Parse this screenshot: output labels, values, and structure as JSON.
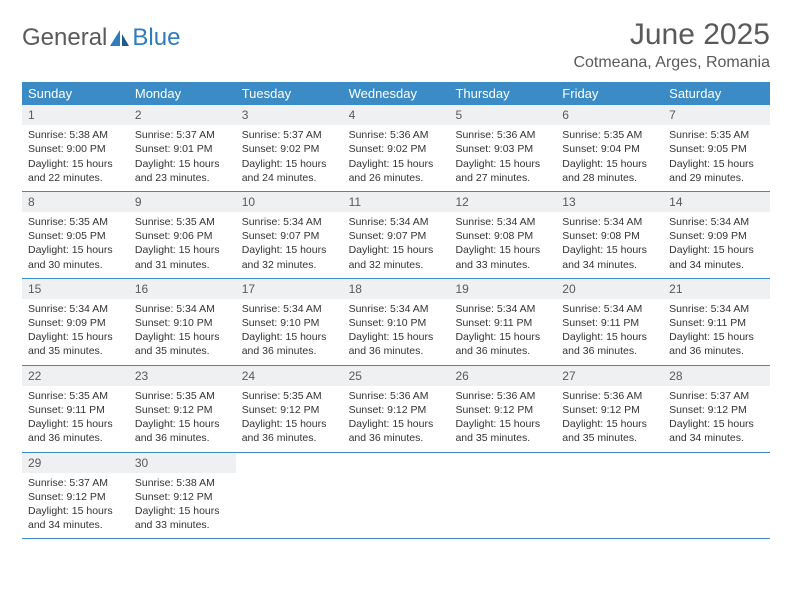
{
  "brand": {
    "part1": "General",
    "part2": "Blue"
  },
  "title": "June 2025",
  "location": "Cotmeana, Arges, Romania",
  "day_labels": [
    "Sunday",
    "Monday",
    "Tuesday",
    "Wednesday",
    "Thursday",
    "Friday",
    "Saturday"
  ],
  "colors": {
    "header_bg": "#3b8bc6",
    "header_text": "#ffffff",
    "daynum_bg": "#eef0f1",
    "border": "#3b8bc6",
    "text": "#333333",
    "title": "#5a5a5a"
  },
  "weeks": [
    [
      {
        "day": "1",
        "sunrise": "Sunrise: 5:38 AM",
        "sunset": "Sunset: 9:00 PM",
        "daylight": "Daylight: 15 hours and 22 minutes."
      },
      {
        "day": "2",
        "sunrise": "Sunrise: 5:37 AM",
        "sunset": "Sunset: 9:01 PM",
        "daylight": "Daylight: 15 hours and 23 minutes."
      },
      {
        "day": "3",
        "sunrise": "Sunrise: 5:37 AM",
        "sunset": "Sunset: 9:02 PM",
        "daylight": "Daylight: 15 hours and 24 minutes."
      },
      {
        "day": "4",
        "sunrise": "Sunrise: 5:36 AM",
        "sunset": "Sunset: 9:02 PM",
        "daylight": "Daylight: 15 hours and 26 minutes."
      },
      {
        "day": "5",
        "sunrise": "Sunrise: 5:36 AM",
        "sunset": "Sunset: 9:03 PM",
        "daylight": "Daylight: 15 hours and 27 minutes."
      },
      {
        "day": "6",
        "sunrise": "Sunrise: 5:35 AM",
        "sunset": "Sunset: 9:04 PM",
        "daylight": "Daylight: 15 hours and 28 minutes."
      },
      {
        "day": "7",
        "sunrise": "Sunrise: 5:35 AM",
        "sunset": "Sunset: 9:05 PM",
        "daylight": "Daylight: 15 hours and 29 minutes."
      }
    ],
    [
      {
        "day": "8",
        "sunrise": "Sunrise: 5:35 AM",
        "sunset": "Sunset: 9:05 PM",
        "daylight": "Daylight: 15 hours and 30 minutes."
      },
      {
        "day": "9",
        "sunrise": "Sunrise: 5:35 AM",
        "sunset": "Sunset: 9:06 PM",
        "daylight": "Daylight: 15 hours and 31 minutes."
      },
      {
        "day": "10",
        "sunrise": "Sunrise: 5:34 AM",
        "sunset": "Sunset: 9:07 PM",
        "daylight": "Daylight: 15 hours and 32 minutes."
      },
      {
        "day": "11",
        "sunrise": "Sunrise: 5:34 AM",
        "sunset": "Sunset: 9:07 PM",
        "daylight": "Daylight: 15 hours and 32 minutes."
      },
      {
        "day": "12",
        "sunrise": "Sunrise: 5:34 AM",
        "sunset": "Sunset: 9:08 PM",
        "daylight": "Daylight: 15 hours and 33 minutes."
      },
      {
        "day": "13",
        "sunrise": "Sunrise: 5:34 AM",
        "sunset": "Sunset: 9:08 PM",
        "daylight": "Daylight: 15 hours and 34 minutes."
      },
      {
        "day": "14",
        "sunrise": "Sunrise: 5:34 AM",
        "sunset": "Sunset: 9:09 PM",
        "daylight": "Daylight: 15 hours and 34 minutes."
      }
    ],
    [
      {
        "day": "15",
        "sunrise": "Sunrise: 5:34 AM",
        "sunset": "Sunset: 9:09 PM",
        "daylight": "Daylight: 15 hours and 35 minutes."
      },
      {
        "day": "16",
        "sunrise": "Sunrise: 5:34 AM",
        "sunset": "Sunset: 9:10 PM",
        "daylight": "Daylight: 15 hours and 35 minutes."
      },
      {
        "day": "17",
        "sunrise": "Sunrise: 5:34 AM",
        "sunset": "Sunset: 9:10 PM",
        "daylight": "Daylight: 15 hours and 36 minutes."
      },
      {
        "day": "18",
        "sunrise": "Sunrise: 5:34 AM",
        "sunset": "Sunset: 9:10 PM",
        "daylight": "Daylight: 15 hours and 36 minutes."
      },
      {
        "day": "19",
        "sunrise": "Sunrise: 5:34 AM",
        "sunset": "Sunset: 9:11 PM",
        "daylight": "Daylight: 15 hours and 36 minutes."
      },
      {
        "day": "20",
        "sunrise": "Sunrise: 5:34 AM",
        "sunset": "Sunset: 9:11 PM",
        "daylight": "Daylight: 15 hours and 36 minutes."
      },
      {
        "day": "21",
        "sunrise": "Sunrise: 5:34 AM",
        "sunset": "Sunset: 9:11 PM",
        "daylight": "Daylight: 15 hours and 36 minutes."
      }
    ],
    [
      {
        "day": "22",
        "sunrise": "Sunrise: 5:35 AM",
        "sunset": "Sunset: 9:11 PM",
        "daylight": "Daylight: 15 hours and 36 minutes."
      },
      {
        "day": "23",
        "sunrise": "Sunrise: 5:35 AM",
        "sunset": "Sunset: 9:12 PM",
        "daylight": "Daylight: 15 hours and 36 minutes."
      },
      {
        "day": "24",
        "sunrise": "Sunrise: 5:35 AM",
        "sunset": "Sunset: 9:12 PM",
        "daylight": "Daylight: 15 hours and 36 minutes."
      },
      {
        "day": "25",
        "sunrise": "Sunrise: 5:36 AM",
        "sunset": "Sunset: 9:12 PM",
        "daylight": "Daylight: 15 hours and 36 minutes."
      },
      {
        "day": "26",
        "sunrise": "Sunrise: 5:36 AM",
        "sunset": "Sunset: 9:12 PM",
        "daylight": "Daylight: 15 hours and 35 minutes."
      },
      {
        "day": "27",
        "sunrise": "Sunrise: 5:36 AM",
        "sunset": "Sunset: 9:12 PM",
        "daylight": "Daylight: 15 hours and 35 minutes."
      },
      {
        "day": "28",
        "sunrise": "Sunrise: 5:37 AM",
        "sunset": "Sunset: 9:12 PM",
        "daylight": "Daylight: 15 hours and 34 minutes."
      }
    ],
    [
      {
        "day": "29",
        "sunrise": "Sunrise: 5:37 AM",
        "sunset": "Sunset: 9:12 PM",
        "daylight": "Daylight: 15 hours and 34 minutes."
      },
      {
        "day": "30",
        "sunrise": "Sunrise: 5:38 AM",
        "sunset": "Sunset: 9:12 PM",
        "daylight": "Daylight: 15 hours and 33 minutes."
      },
      null,
      null,
      null,
      null,
      null
    ]
  ]
}
